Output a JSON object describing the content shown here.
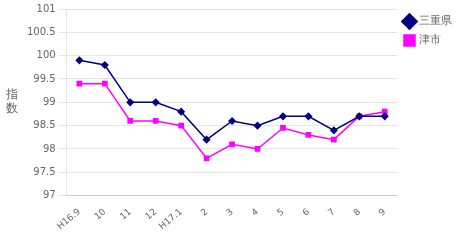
{
  "chart_data": {
    "type": "line",
    "categories": [
      "H16.9",
      "10",
      "11",
      "12",
      "H17.1",
      "2",
      "3",
      "4",
      "5",
      "6",
      "7",
      "8",
      "9"
    ],
    "series": [
      {
        "name": "三重県",
        "color": "#000080",
        "marker": "diamond",
        "values": [
          99.9,
          99.8,
          99.0,
          99.0,
          98.8,
          98.2,
          98.6,
          98.5,
          98.7,
          98.7,
          98.4,
          98.7,
          98.7
        ]
      },
      {
        "name": "津市",
        "color": "#FF00FF",
        "marker": "square",
        "values": [
          99.4,
          99.4,
          98.6,
          98.6,
          98.5,
          97.8,
          98.1,
          98.0,
          98.45,
          98.3,
          98.2,
          98.7,
          98.8
        ]
      }
    ],
    "ylabel": "指\n数",
    "ylim": [
      97,
      101
    ],
    "yticks": [
      97,
      97.5,
      98,
      98.5,
      99,
      99.5,
      100,
      100.5,
      101
    ],
    "grid": "y",
    "legend": "right"
  }
}
